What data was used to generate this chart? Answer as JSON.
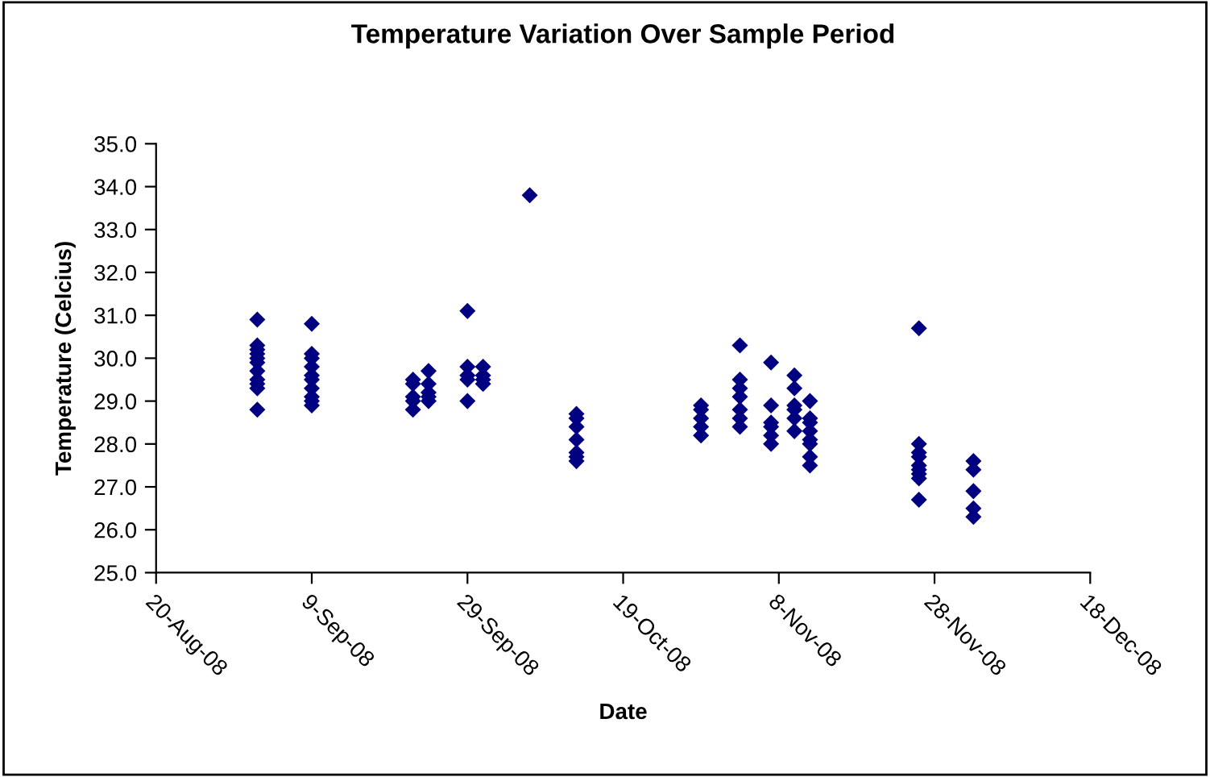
{
  "chart_data": {
    "type": "scatter",
    "title": "Temperature Variation Over Sample Period",
    "xlabel": "Date",
    "ylabel": "Temperature (Celcius)",
    "marker": "diamond",
    "grid": false,
    "xlim": [
      "2008-08-20",
      "2008-12-18"
    ],
    "xticks": [
      {
        "value": "2008-08-20",
        "label": "20-Aug-08"
      },
      {
        "value": "2008-09-09",
        "label": "9-Sep-08"
      },
      {
        "value": "2008-09-29",
        "label": "29-Sep-08"
      },
      {
        "value": "2008-10-19",
        "label": "19-Oct-08"
      },
      {
        "value": "2008-11-08",
        "label": "8-Nov-08"
      },
      {
        "value": "2008-11-28",
        "label": "28-Nov-08"
      },
      {
        "value": "2008-12-18",
        "label": "18-Dec-08"
      }
    ],
    "ylim": [
      25,
      35
    ],
    "yticks": [
      {
        "value": 25,
        "label": "25.0"
      },
      {
        "value": 26,
        "label": "26.0"
      },
      {
        "value": 27,
        "label": "27.0"
      },
      {
        "value": 28,
        "label": "28.0"
      },
      {
        "value": 29,
        "label": "29.0"
      },
      {
        "value": 30,
        "label": "30.0"
      },
      {
        "value": 31,
        "label": "31.0"
      },
      {
        "value": 32,
        "label": "32.0"
      },
      {
        "value": 33,
        "label": "33.0"
      },
      {
        "value": 34,
        "label": "34.0"
      },
      {
        "value": 35,
        "label": "35.0"
      }
    ],
    "series": [
      {
        "color": "#000080",
        "x": [
          "2008-09-02",
          "2008-09-02",
          "2008-09-02",
          "2008-09-02",
          "2008-09-02",
          "2008-09-02",
          "2008-09-02",
          "2008-09-02",
          "2008-09-02",
          "2008-09-02",
          "2008-09-02",
          "2008-09-09",
          "2008-09-09",
          "2008-09-09",
          "2008-09-09",
          "2008-09-09",
          "2008-09-09",
          "2008-09-09",
          "2008-09-09",
          "2008-09-09",
          "2008-09-09",
          "2008-09-22",
          "2008-09-22",
          "2008-09-22",
          "2008-09-22",
          "2008-09-22",
          "2008-09-24",
          "2008-09-24",
          "2008-09-24",
          "2008-09-24",
          "2008-09-24",
          "2008-09-29",
          "2008-09-29",
          "2008-09-29",
          "2008-09-29",
          "2008-09-29",
          "2008-10-01",
          "2008-10-01",
          "2008-10-01",
          "2008-10-01",
          "2008-10-07",
          "2008-10-13",
          "2008-10-13",
          "2008-10-13",
          "2008-10-13",
          "2008-10-13",
          "2008-10-13",
          "2008-10-13",
          "2008-10-29",
          "2008-10-29",
          "2008-10-29",
          "2008-10-29",
          "2008-10-29",
          "2008-11-03",
          "2008-11-03",
          "2008-11-03",
          "2008-11-03",
          "2008-11-03",
          "2008-11-03",
          "2008-11-03",
          "2008-11-07",
          "2008-11-07",
          "2008-11-07",
          "2008-11-07",
          "2008-11-07",
          "2008-11-07",
          "2008-11-10",
          "2008-11-10",
          "2008-11-10",
          "2008-11-10",
          "2008-11-10",
          "2008-11-10",
          "2008-11-12",
          "2008-11-12",
          "2008-11-12",
          "2008-11-12",
          "2008-11-12",
          "2008-11-12",
          "2008-11-12",
          "2008-11-12",
          "2008-11-26",
          "2008-11-26",
          "2008-11-26",
          "2008-11-26",
          "2008-11-26",
          "2008-11-26",
          "2008-11-26",
          "2008-11-26",
          "2008-11-26",
          "2008-12-03",
          "2008-12-03",
          "2008-12-03",
          "2008-12-03",
          "2008-12-03"
        ],
        "values": [
          30.9,
          30.3,
          30.2,
          30.1,
          30.0,
          29.9,
          29.7,
          29.5,
          29.4,
          29.3,
          28.8,
          30.8,
          30.1,
          30.0,
          29.8,
          29.6,
          29.5,
          29.3,
          29.1,
          29.0,
          28.9,
          29.5,
          29.4,
          29.1,
          29.0,
          28.8,
          29.7,
          29.4,
          29.2,
          29.1,
          29.0,
          31.1,
          29.8,
          29.6,
          29.5,
          29.0,
          29.8,
          29.6,
          29.5,
          29.4,
          33.8,
          28.7,
          28.6,
          28.4,
          28.1,
          27.8,
          27.7,
          27.6,
          28.9,
          28.8,
          28.6,
          28.4,
          28.2,
          30.3,
          29.5,
          29.3,
          29.1,
          28.8,
          28.6,
          28.4,
          29.9,
          28.9,
          28.5,
          28.4,
          28.2,
          28.0,
          29.6,
          29.3,
          28.9,
          28.8,
          28.6,
          28.3,
          29.0,
          28.6,
          28.5,
          28.3,
          28.1,
          28.0,
          27.7,
          27.5,
          30.7,
          28.0,
          27.8,
          27.7,
          27.5,
          27.4,
          27.3,
          27.2,
          26.7,
          27.6,
          27.4,
          26.9,
          26.5,
          26.3
        ]
      }
    ]
  }
}
